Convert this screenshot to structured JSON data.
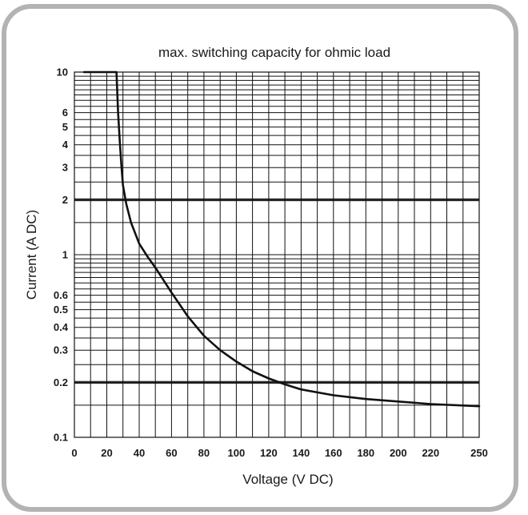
{
  "chart_data": {
    "type": "line",
    "title": "max. switching capacity for ohmic load",
    "xlabel": "Voltage (V DC)",
    "ylabel": "Current (A DC)",
    "x_scale": "linear",
    "y_scale": "log",
    "xlim": [
      0,
      250
    ],
    "ylim": [
      0.1,
      10
    ],
    "x_ticks": [
      0,
      20,
      40,
      60,
      80,
      100,
      120,
      140,
      160,
      180,
      200,
      220,
      250
    ],
    "x_tick_labels": [
      "0",
      "20",
      "40",
      "60",
      "80",
      "100",
      "120",
      "140",
      "160",
      "180",
      "200",
      "220",
      "250"
    ],
    "y_ticks": [
      0.1,
      0.2,
      0.3,
      0.4,
      0.5,
      0.6,
      1,
      2,
      3,
      4,
      5,
      6,
      10
    ],
    "y_tick_labels": [
      "0.1",
      "0.2",
      "0.3",
      "0.4",
      "0.5",
      "0.6",
      "1",
      "2",
      "3",
      "4",
      "5",
      "6",
      "10"
    ],
    "grid": true,
    "series": [
      {
        "x": [
          6,
          26,
          27,
          28,
          29,
          30,
          32,
          35,
          40,
          45,
          50,
          60,
          70,
          80,
          90,
          100,
          110,
          120,
          130,
          140,
          160,
          180,
          200,
          220,
          250
        ],
        "y": [
          10,
          10,
          6,
          4.2,
          3.1,
          2.4,
          1.9,
          1.5,
          1.15,
          0.98,
          0.85,
          0.62,
          0.46,
          0.36,
          0.3,
          0.26,
          0.23,
          0.21,
          0.195,
          0.183,
          0.17,
          0.162,
          0.157,
          0.152,
          0.148
        ]
      }
    ]
  }
}
